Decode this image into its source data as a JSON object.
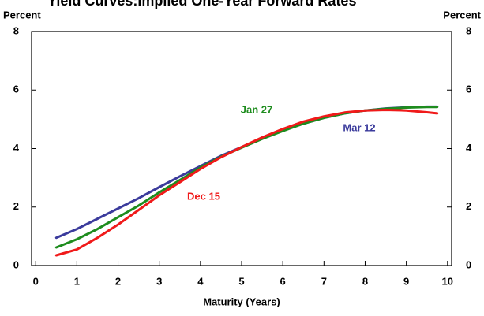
{
  "chart_data": {
    "type": "line",
    "title": "Yield Curves:Implied One-Year Forward Rates",
    "y_label": "Percent",
    "y2_label": "Percent",
    "x_label": "Maturity (Years)",
    "x": [
      0.5,
      1,
      1.5,
      2,
      2.5,
      3,
      3.5,
      4,
      4.5,
      5,
      5.5,
      6,
      6.5,
      7,
      7.5,
      8,
      8.5,
      9,
      9.5,
      9.75
    ],
    "series": [
      {
        "name": "Mar 12",
        "color": "#3b3b9c",
        "values": [
          0.95,
          1.25,
          1.6,
          1.95,
          2.3,
          2.68,
          3.05,
          3.4,
          3.75,
          4.05,
          4.35,
          4.62,
          4.85,
          5.05,
          5.2,
          5.3,
          5.37,
          5.41,
          5.43,
          5.43
        ]
      },
      {
        "name": "Jan 27",
        "color": "#1e8c1e",
        "values": [
          0.62,
          0.9,
          1.25,
          1.65,
          2.05,
          2.5,
          2.92,
          3.35,
          3.72,
          4.03,
          4.33,
          4.6,
          4.85,
          5.05,
          5.2,
          5.3,
          5.36,
          5.4,
          5.42,
          5.42
        ]
      },
      {
        "name": "Dec 15",
        "color": "#f01a1a",
        "values": [
          0.35,
          0.55,
          0.95,
          1.4,
          1.9,
          2.4,
          2.85,
          3.3,
          3.7,
          4.05,
          4.38,
          4.67,
          4.92,
          5.1,
          5.23,
          5.3,
          5.32,
          5.3,
          5.24,
          5.2
        ]
      }
    ],
    "xlim": [
      -0.1,
      10.1
    ],
    "xticks": [
      0,
      1,
      2,
      3,
      4,
      5,
      6,
      7,
      8,
      9,
      10
    ],
    "ylim": [
      0,
      8
    ],
    "yticks": [
      0,
      2,
      4,
      6,
      8
    ],
    "y2lim": [
      0,
      8
    ],
    "y2ticks": [
      0,
      2,
      4,
      6,
      8
    ]
  }
}
